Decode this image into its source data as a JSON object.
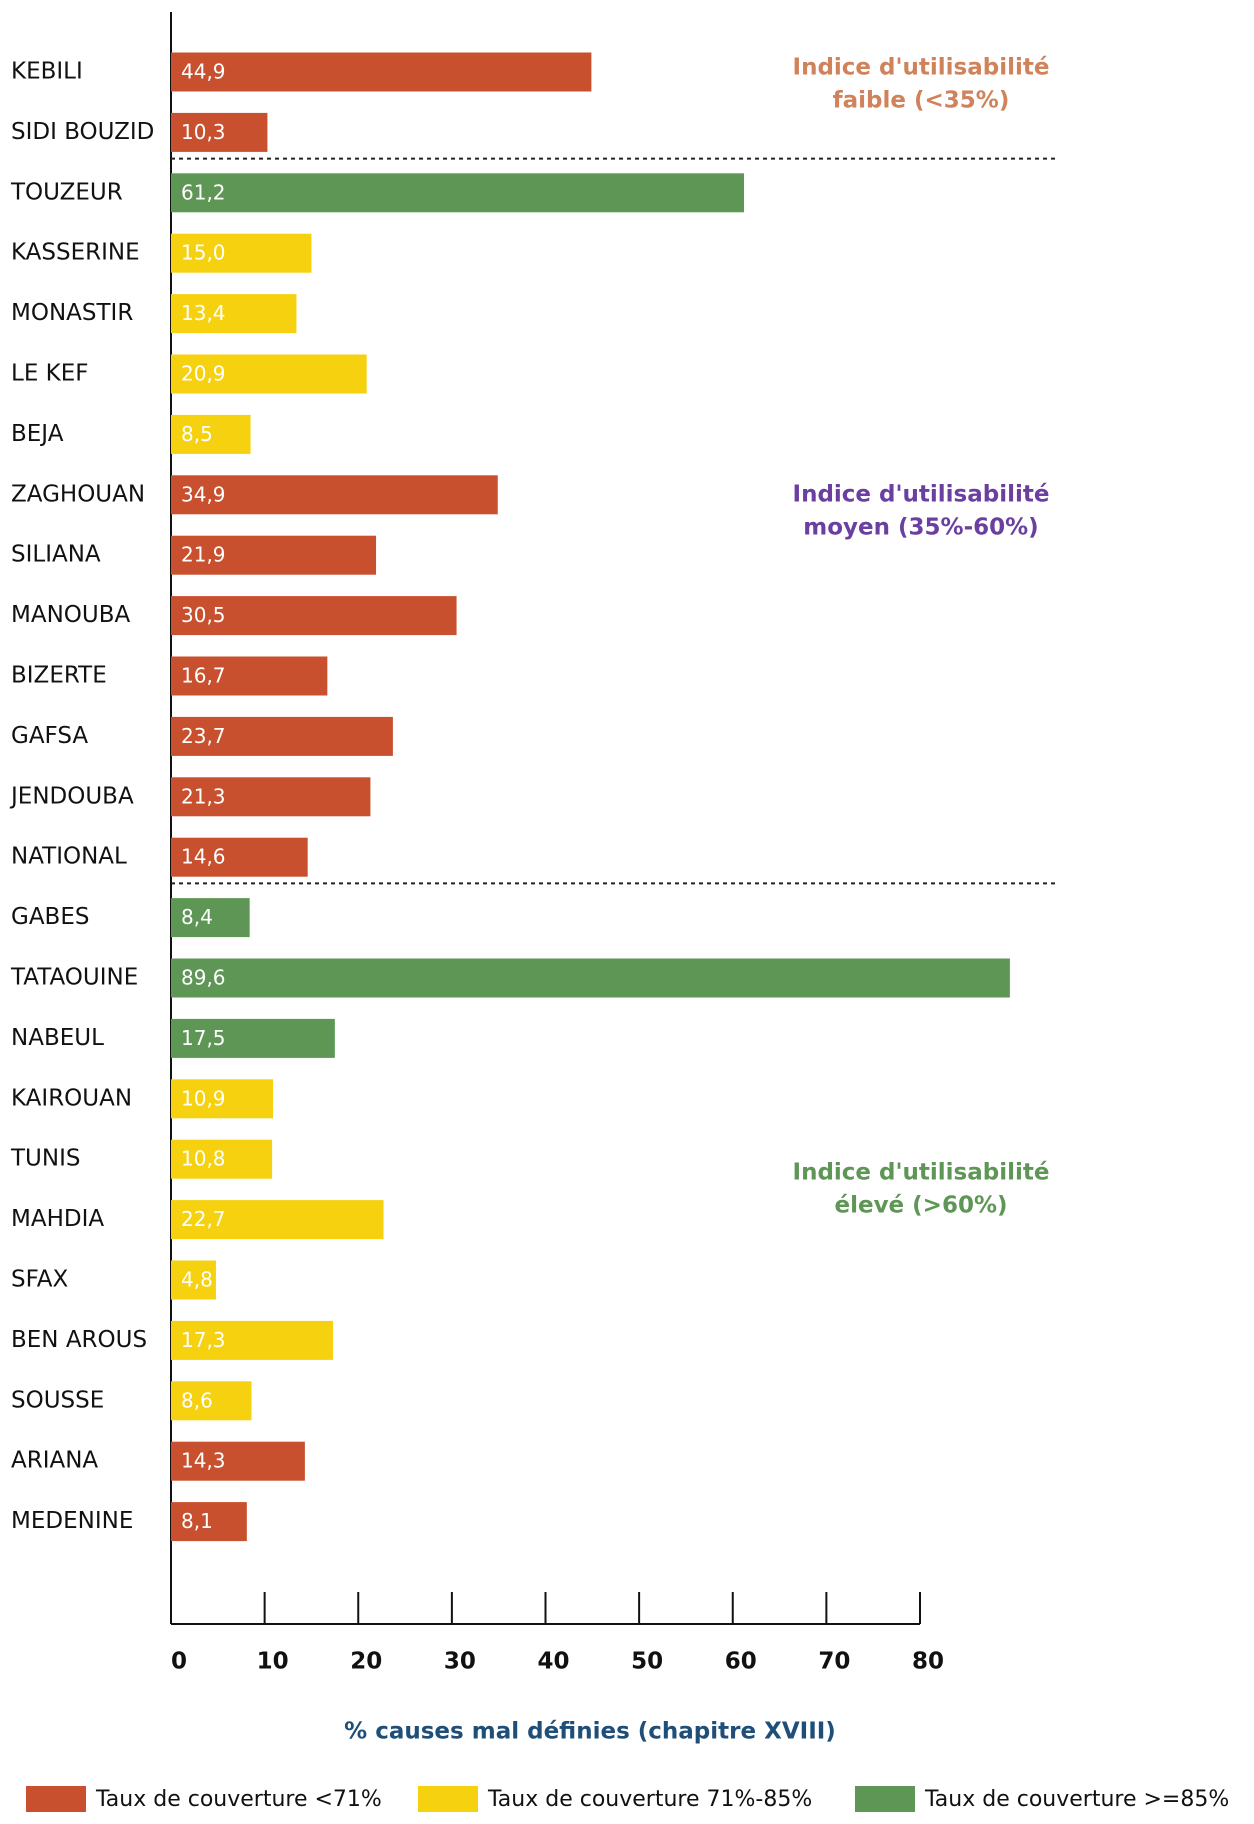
{
  "chart_data": {
    "type": "bar",
    "orientation": "horizontal",
    "categories": [
      "KEBILI",
      "SIDI BOUZID",
      "TOUZEUR",
      "KASSERINE",
      "MONASTIR",
      "LE KEF",
      "BEJA",
      "ZAGHOUAN",
      "SILIANA",
      "MANOUBA",
      "BIZERTE",
      "GAFSA",
      "JENDOUBA",
      "NATIONAL",
      "GABES",
      "TATAOUINE",
      "NABEUL",
      "KAIROUAN",
      "TUNIS",
      "MAHDIA",
      "SFAX",
      "BEN AROUS",
      "SOUSSE",
      "ARIANA",
      "MEDENINE"
    ],
    "values": [
      44.9,
      10.3,
      61.2,
      15.0,
      13.4,
      20.9,
      8.5,
      34.9,
      21.9,
      30.5,
      16.7,
      23.7,
      21.3,
      14.6,
      8.4,
      89.6,
      17.5,
      10.9,
      10.8,
      22.7,
      4.8,
      17.3,
      8.6,
      14.3,
      8.1
    ],
    "value_labels": [
      "44,9",
      "10,3",
      "61,2",
      "15,0",
      "13,4",
      "20,9",
      "8,5",
      "34,9",
      "21,9",
      "30,5",
      "16,7",
      "23,7",
      "21,3",
      "14,6",
      "8,4",
      "89,6",
      "17,5",
      "10,9",
      "10,8",
      "22,7",
      "4,8",
      "17,3",
      "8,6",
      "14,3",
      "8,1"
    ],
    "colors": [
      "#c8502e",
      "#c8502e",
      "#5e9655",
      "#f5d10f",
      "#f5d10f",
      "#f5d10f",
      "#f5d10f",
      "#c8502e",
      "#c8502e",
      "#c8502e",
      "#c8502e",
      "#c8502e",
      "#c8502e",
      "#c8502e",
      "#5e9655",
      "#5e9655",
      "#5e9655",
      "#f5d10f",
      "#f5d10f",
      "#f5d10f",
      "#f5d10f",
      "#f5d10f",
      "#f5d10f",
      "#c8502e",
      "#c8502e"
    ],
    "highlight_category": "NATIONAL",
    "highlight_color": "#8b1a2b",
    "xlim": [
      0,
      80
    ],
    "xticks": [
      0,
      10,
      20,
      30,
      40,
      50,
      60,
      70,
      80
    ],
    "x_label": "% causes mal définies (chapitre XVIII)",
    "annotations": [
      {
        "lines": [
          "Indice d'utilisabilité",
          "faible (<35%)"
        ],
        "color": "#d0825a"
      },
      {
        "lines": [
          "Indice d'utilisabilité",
          "moyen (35%-60%)"
        ],
        "color": "#6a3fa0"
      },
      {
        "lines": [
          "Indice  d'utilisabilité",
          "élevé (>60%)"
        ],
        "color": "#5e9655"
      }
    ],
    "legend": [
      {
        "name": "Taux de couverture <71%",
        "color": "#c8502e"
      },
      {
        "name": "Taux de couverture 71%-85%",
        "color": "#f5d10f"
      },
      {
        "name": "Taux de couverture >=85%",
        "color": "#5e9655"
      }
    ],
    "legend_position": "bottom"
  }
}
